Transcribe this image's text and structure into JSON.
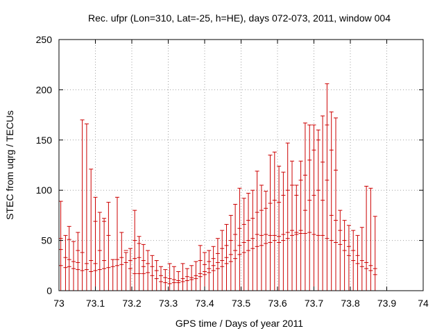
{
  "chart_data": {
    "type": "errorbar",
    "title": "Rec. ufpr (Lon=310, Lat=-25, h=HE), days 072-073, 2011, window 004",
    "xlabel": "GPS time / Days of year 2011",
    "ylabel": "STEC from uqrg / TECUs",
    "xlim": [
      73,
      74
    ],
    "ylim": [
      0,
      250
    ],
    "x_ticks": [
      "73",
      "73.1",
      "73.2",
      "73.3",
      "73.4",
      "73.5",
      "73.6",
      "73.7",
      "73.8",
      "73.9",
      "74"
    ],
    "y_ticks": [
      "0",
      "50",
      "100",
      "150",
      "200",
      "250"
    ],
    "grid": true,
    "color": "#cc0000",
    "columns": [
      [
        73.005,
        0,
        89,
        [
          25,
          41,
          52
        ]
      ],
      [
        73.018,
        0,
        55,
        [
          23,
          33
        ]
      ],
      [
        73.028,
        0,
        64,
        [
          24,
          31,
          51
        ]
      ],
      [
        73.04,
        0,
        49,
        [
          22,
          29
        ]
      ],
      [
        73.052,
        0,
        58,
        [
          21,
          28,
          40
        ]
      ],
      [
        73.064,
        0,
        170,
        [
          20,
          38
        ]
      ],
      [
        73.076,
        0,
        166,
        [
          21,
          27
        ]
      ],
      [
        73.088,
        0,
        121,
        [
          19,
          30
        ]
      ],
      [
        73.1,
        0,
        93,
        [
          20,
          27,
          69
        ]
      ],
      [
        73.112,
        0,
        78,
        [
          21,
          40
        ]
      ],
      [
        73.124,
        0,
        72,
        [
          22,
          30,
          69
        ]
      ],
      [
        73.136,
        0,
        88,
        [
          23,
          55
        ]
      ],
      [
        73.148,
        0,
        31,
        [
          24
        ]
      ],
      [
        73.16,
        0,
        93,
        [
          25,
          31
        ]
      ],
      [
        73.172,
        0,
        58,
        [
          26,
          33
        ]
      ],
      [
        73.184,
        0,
        38,
        [
          28,
          40
        ]
      ],
      [
        73.196,
        0,
        42,
        [
          30,
          22
        ]
      ],
      [
        73.208,
        0,
        80,
        [
          32,
          17,
          50
        ]
      ],
      [
        73.22,
        0,
        54,
        [
          33,
          47,
          17
        ]
      ],
      [
        73.232,
        0,
        46,
        [
          30,
          24,
          17
        ]
      ],
      [
        73.244,
        0,
        40,
        [
          27,
          18
        ]
      ],
      [
        73.256,
        0,
        35,
        [
          24,
          15
        ]
      ],
      [
        73.268,
        0,
        30,
        [
          20,
          12
        ]
      ],
      [
        73.28,
        0,
        24,
        [
          15,
          9
        ]
      ],
      [
        73.292,
        0,
        21,
        [
          13,
          8
        ]
      ],
      [
        73.304,
        0,
        27,
        [
          12,
          7
        ]
      ],
      [
        73.316,
        0,
        24,
        [
          11,
          8
        ]
      ],
      [
        73.328,
        0,
        19,
        [
          10,
          8
        ]
      ],
      [
        73.34,
        0,
        27,
        [
          12,
          9
        ]
      ],
      [
        73.352,
        0,
        22,
        [
          14,
          10
        ]
      ],
      [
        73.364,
        0,
        25,
        [
          13,
          11
        ]
      ],
      [
        73.376,
        0,
        29,
        [
          15,
          12
        ]
      ],
      [
        73.388,
        0,
        45,
        [
          17,
          14,
          30
        ]
      ],
      [
        73.4,
        0,
        38,
        [
          19,
          16,
          26
        ]
      ],
      [
        73.412,
        0,
        40,
        [
          22,
          18,
          29
        ]
      ],
      [
        73.424,
        0,
        44,
        [
          25,
          20,
          32
        ]
      ],
      [
        73.436,
        0,
        52,
        [
          28,
          22,
          37
        ]
      ],
      [
        73.448,
        0,
        60,
        [
          30,
          24,
          42
        ]
      ],
      [
        73.46,
        0,
        66,
        [
          33,
          27,
          45
        ]
      ],
      [
        73.472,
        0,
        75,
        [
          36,
          29,
          50
        ]
      ],
      [
        73.484,
        0,
        86,
        [
          40,
          32,
          56
        ]
      ],
      [
        73.496,
        0,
        102,
        [
          45,
          36,
          62
        ]
      ],
      [
        73.508,
        0,
        92,
        [
          48,
          38,
          66
        ]
      ],
      [
        73.52,
        0,
        97,
        [
          50,
          40,
          70
        ]
      ],
      [
        73.532,
        0,
        100,
        [
          52,
          42,
          72
        ]
      ],
      [
        73.544,
        0,
        119,
        [
          56,
          44,
          78
        ]
      ],
      [
        73.556,
        0,
        105,
        [
          55,
          45,
          80
        ]
      ],
      [
        73.568,
        0,
        99,
        [
          56,
          47,
          82
        ]
      ],
      [
        73.58,
        0,
        135,
        [
          55,
          48,
          87
        ]
      ],
      [
        73.592,
        0,
        138,
        [
          55,
          50,
          90
        ]
      ],
      [
        73.604,
        0,
        124,
        [
          54,
          48,
          88
        ]
      ],
      [
        73.616,
        0,
        118,
        [
          56,
          50,
          95
        ]
      ],
      [
        73.628,
        0,
        147,
        [
          58,
          52,
          100
        ]
      ],
      [
        73.64,
        0,
        129,
        [
          60,
          55,
          105
        ]
      ],
      [
        73.652,
        0,
        105,
        [
          58,
          56,
          95
        ]
      ],
      [
        73.664,
        0,
        129,
        [
          57,
          60,
          110
        ]
      ],
      [
        73.676,
        0,
        167,
        [
          57,
          80,
          115
        ]
      ],
      [
        73.688,
        0,
        165,
        [
          58,
          90,
          130
        ]
      ],
      [
        73.7,
        0,
        165,
        [
          56,
          95,
          140
        ]
      ],
      [
        73.712,
        0,
        160,
        [
          55,
          100,
          150
        ]
      ],
      [
        73.724,
        0,
        174,
        [
          55,
          90,
          128
        ]
      ],
      [
        73.736,
        0,
        206,
        [
          52,
          110,
          165
        ]
      ],
      [
        73.748,
        0,
        178,
        [
          50,
          75,
          140
        ]
      ],
      [
        73.76,
        0,
        172,
        [
          48,
          70,
          120
        ]
      ],
      [
        73.772,
        0,
        80,
        [
          46,
          60
        ]
      ],
      [
        73.784,
        0,
        70,
        [
          40,
          50
        ]
      ],
      [
        73.796,
        0,
        65,
        [
          35,
          44
        ]
      ],
      [
        73.808,
        0,
        60,
        [
          30,
          40
        ]
      ],
      [
        73.82,
        0,
        55,
        [
          27,
          35
        ]
      ],
      [
        73.832,
        0,
        63,
        [
          24,
          30
        ]
      ],
      [
        73.844,
        0,
        104,
        [
          22,
          28
        ]
      ],
      [
        73.856,
        0,
        102,
        [
          20,
          25
        ]
      ],
      [
        73.868,
        0,
        74,
        [
          16,
          22
        ]
      ]
    ]
  }
}
